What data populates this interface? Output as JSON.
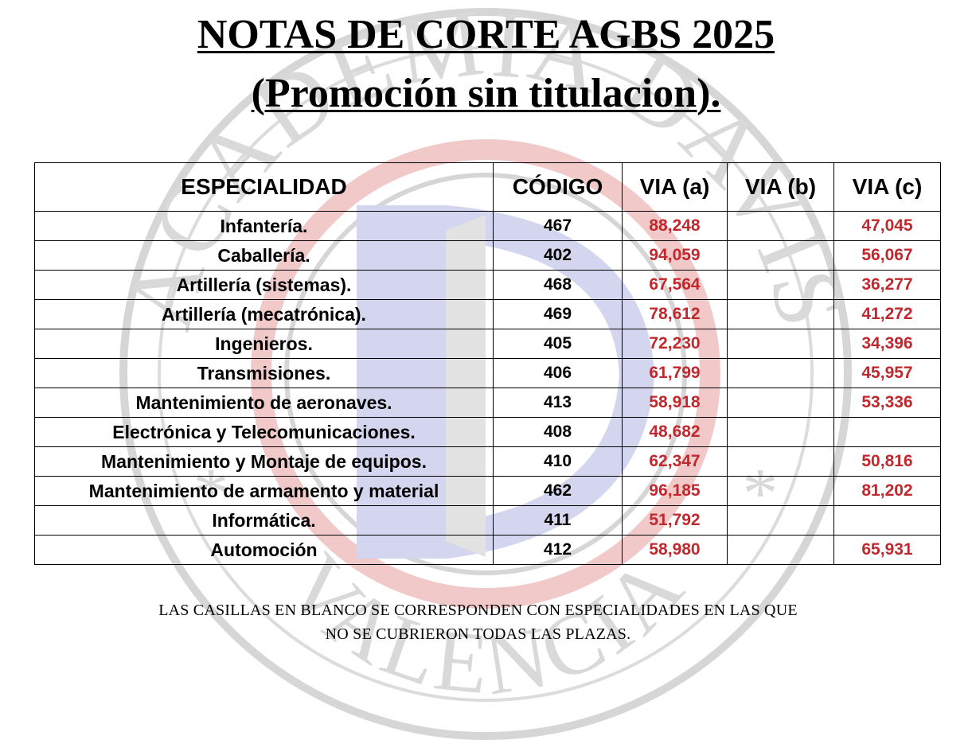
{
  "title": {
    "line1": "NOTAS DE CORTE AGBS 2025",
    "line2": "(Promoción sin titulacion)."
  },
  "watermark": {
    "top_text": "ACADEMIA DAVIS",
    "bottom_text": "VALENCIA",
    "star": "*",
    "colors": {
      "gray": "#d4d4d4",
      "red": "#f1c9c9",
      "blue": "#d3d6ee"
    }
  },
  "table": {
    "headers": [
      "ESPECIALIDAD",
      "CÓDIGO",
      "VIA (a)",
      "VIA (b)",
      "VIA (c)"
    ],
    "rows": [
      {
        "especialidad": "Infantería.",
        "codigo": "467",
        "via_a": "88,248",
        "via_b": "",
        "via_c": "47,045"
      },
      {
        "especialidad": "Caballería.",
        "codigo": "402",
        "via_a": "94,059",
        "via_b": "",
        "via_c": "56,067"
      },
      {
        "especialidad": "Artillería (sistemas).",
        "codigo": "468",
        "via_a": "67,564",
        "via_b": "",
        "via_c": "36,277"
      },
      {
        "especialidad": "Artillería (mecatrónica).",
        "codigo": "469",
        "via_a": "78,612",
        "via_b": "",
        "via_c": "41,272"
      },
      {
        "especialidad": "Ingenieros.",
        "codigo": "405",
        "via_a": "72,230",
        "via_b": "",
        "via_c": "34,396"
      },
      {
        "especialidad": "Transmisiones.",
        "codigo": "406",
        "via_a": "61,799",
        "via_b": "",
        "via_c": "45,957"
      },
      {
        "especialidad": "Mantenimiento de aeronaves.",
        "codigo": "413",
        "via_a": "58,918",
        "via_b": "",
        "via_c": "53,336"
      },
      {
        "especialidad": "Electrónica y Telecomunicaciones.",
        "codigo": "408",
        "via_a": "48,682",
        "via_b": "",
        "via_c": ""
      },
      {
        "especialidad": "Mantenimiento y Montaje de equipos.",
        "codigo": "410",
        "via_a": "62,347",
        "via_b": "",
        "via_c": "50,816"
      },
      {
        "especialidad": "Mantenimiento de armamento y material",
        "codigo": "462",
        "via_a": "96,185",
        "via_b": "",
        "via_c": "81,202"
      },
      {
        "especialidad": "Informática.",
        "codigo": "411",
        "via_a": "51,792",
        "via_b": "",
        "via_c": ""
      },
      {
        "especialidad": "Automoción",
        "codigo": "412",
        "via_a": "58,980",
        "via_b": "",
        "via_c": "65,931"
      }
    ],
    "value_color": "#c0282d"
  },
  "footer": {
    "line1": "LAS CASILLAS EN BLANCO SE CORRESPONDEN CON ESPECIALIDADES EN LAS QUE",
    "line2": "NO SE CUBRIERON TODAS LAS PLAZAS."
  }
}
